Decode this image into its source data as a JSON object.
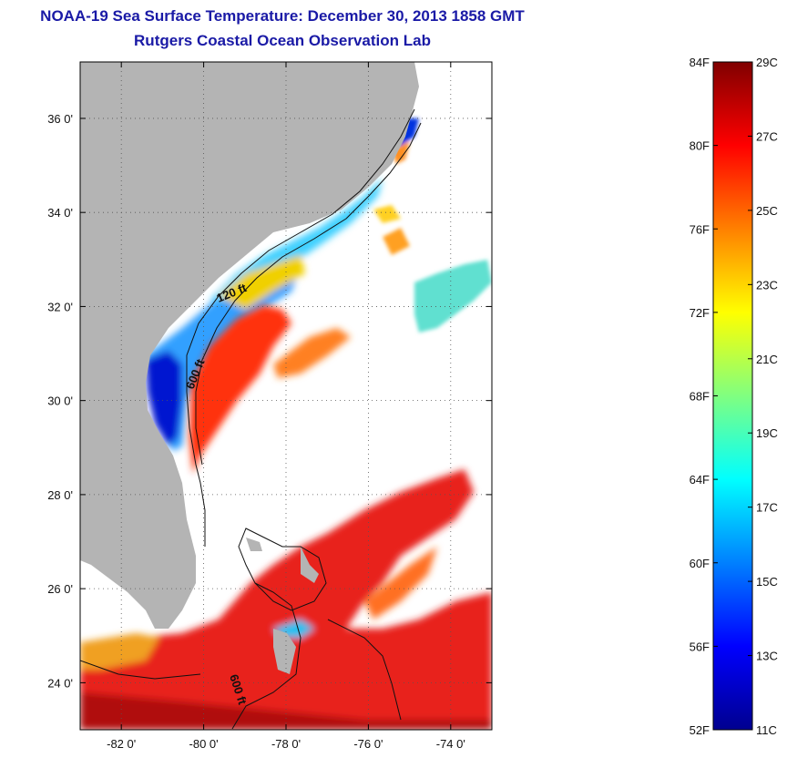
{
  "title": "NOAA-19 Sea Surface Temperature:  December 30, 2013 1858 GMT",
  "subtitle": "Rutgers Coastal Ocean Observation Lab",
  "map": {
    "lon_range": [
      -83,
      -73
    ],
    "lat_range": [
      23,
      37.2
    ],
    "lon_ticks": [
      {
        "value": -82,
        "label": "-82 0'"
      },
      {
        "value": -80,
        "label": "-80 0'"
      },
      {
        "value": -78,
        "label": "-78 0'"
      },
      {
        "value": -76,
        "label": "-76 0'"
      },
      {
        "value": -74,
        "label": "-74 0'"
      }
    ],
    "lat_ticks": [
      {
        "value": 24,
        "label": "24 0'"
      },
      {
        "value": 26,
        "label": "26 0'"
      },
      {
        "value": 28,
        "label": "28 0'"
      },
      {
        "value": 30,
        "label": "30 0'"
      },
      {
        "value": 32,
        "label": "32 0'"
      },
      {
        "value": 34,
        "label": "34 0'"
      },
      {
        "value": 36,
        "label": "36 0'"
      }
    ],
    "grid": true,
    "land_color": "#b4b4b4",
    "contour_labels": [
      {
        "text": "120 ft"
      },
      {
        "text": "600 ft"
      },
      {
        "text": "600 ft"
      }
    ]
  },
  "colorbar": {
    "colors": [
      "#00008f",
      "#0000ff",
      "#0080ff",
      "#00ffff",
      "#80ff80",
      "#ffff00",
      "#ff8000",
      "#ff0000",
      "#800000"
    ],
    "fahrenheit_labels": [
      "84F",
      "80F",
      "76F",
      "72F",
      "68F",
      "64F",
      "60F",
      "56F",
      "52F"
    ],
    "celsius_labels": [
      "29C",
      "27C",
      "25C",
      "23C",
      "21C",
      "19C",
      "17C",
      "15C",
      "13C",
      "11C"
    ]
  }
}
